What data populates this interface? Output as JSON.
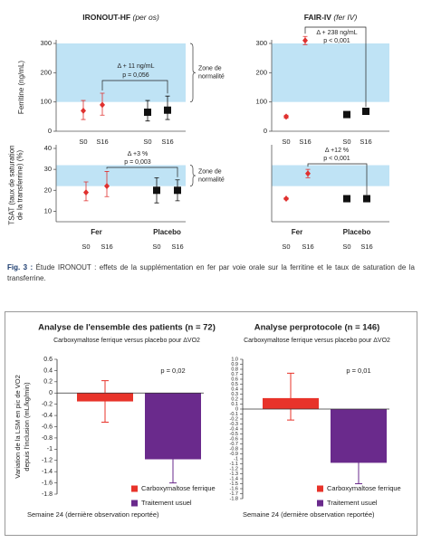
{
  "caption": {
    "label": "Fig. 3 :",
    "text": "Étude IRONOUT : effets de la supplémentation en fer par voie orale sur la ferritine et le taux de saturation de la transferrine."
  },
  "chart_data": [
    {
      "type": "dot",
      "title": "IRONOUT-HF",
      "title_note": "(per os)",
      "ylabel": [
        "Ferritine (ng/mL)"
      ],
      "categories": [
        "S0",
        "S16",
        "S0",
        "S16"
      ],
      "values": [
        70,
        90,
        65,
        72
      ],
      "low": [
        40,
        55,
        35,
        40
      ],
      "high": [
        105,
        130,
        105,
        120
      ],
      "colors": [
        "#e0312f",
        "#e0312f",
        "#111111",
        "#111111"
      ],
      "markers": [
        "diamond",
        "diamond",
        "square",
        "square"
      ],
      "ylim": [
        0,
        300
      ],
      "yticks": [
        0,
        100,
        200,
        300
      ],
      "normal_zone": [
        100,
        300
      ],
      "zone_label": [
        "Zone de",
        "normalité"
      ],
      "delta": "Δ + 11 ng/mL",
      "p": "p = 0,056"
    },
    {
      "type": "dot",
      "title": "FAIR-IV",
      "title_note": "(fer IV)",
      "categories": [
        "S0",
        "S16",
        "S0",
        "S16"
      ],
      "values": [
        50,
        310,
        57,
        68
      ],
      "low": [
        45,
        296,
        52,
        62
      ],
      "high": [
        55,
        324,
        62,
        74
      ],
      "colors": [
        "#e0312f",
        "#e0312f",
        "#111111",
        "#111111"
      ],
      "markers": [
        "diamond",
        "diamond",
        "square",
        "square"
      ],
      "ylim": [
        0,
        300
      ],
      "yticks": [
        0,
        100,
        200,
        300
      ],
      "normal_zone": [
        100,
        300
      ],
      "delta": "Δ + 238 ng/mL",
      "p": "p < 0,001"
    },
    {
      "type": "dot",
      "ylabel": [
        "TSAT (taux de saturation",
        "de la transferrine) (%)"
      ],
      "categories": [
        "S0",
        "S16",
        "S0",
        "S16"
      ],
      "group_labels": [
        "Fer",
        "Placebo"
      ],
      "group_colors": [
        "#e0312f",
        "#111111"
      ],
      "values": [
        19,
        22,
        20,
        20
      ],
      "low": [
        15,
        17,
        14,
        15
      ],
      "high": [
        24,
        29,
        26,
        25
      ],
      "colors": [
        "#e0312f",
        "#e0312f",
        "#111111",
        "#111111"
      ],
      "markers": [
        "diamond",
        "diamond",
        "square",
        "square"
      ],
      "ylim": [
        5,
        40
      ],
      "yticks": [
        10,
        20,
        30,
        40
      ],
      "normal_zone": [
        22,
        32
      ],
      "zone_label": [
        "Zone de",
        "normalité"
      ],
      "delta": "Δ +3 %",
      "p": "p = 0,003"
    },
    {
      "type": "dot",
      "categories": [
        "S0",
        "S16",
        "S0",
        "S16"
      ],
      "group_labels": [
        "Fer",
        "Placebo"
      ],
      "group_colors": [
        "#e0312f",
        "#111111"
      ],
      "values": [
        16,
        28,
        16,
        16
      ],
      "low": [
        15.5,
        26,
        15.5,
        15.5
      ],
      "high": [
        16.5,
        30,
        16.5,
        16.5
      ],
      "colors": [
        "#e0312f",
        "#e0312f",
        "#111111",
        "#111111"
      ],
      "markers": [
        "diamond",
        "diamond",
        "square",
        "square"
      ],
      "ylim": [
        5,
        40
      ],
      "normal_zone": [
        22,
        32
      ],
      "delta": "Δ +12 %",
      "p": "p < 0,001"
    },
    {
      "type": "bar",
      "title": "Analyse de l'ensemble des patients (n = 72)",
      "subtitle": "Carboxymaltose ferrique versus placebo pour ΔVO2",
      "ylabel": [
        "Variation de la LSM en pic de VO2",
        "depuis l'inclusion (mL/kg/min)"
      ],
      "categories": [
        "Carboxymaltose ferrique",
        "Traitement usuel"
      ],
      "values": [
        -0.15,
        -1.18
      ],
      "low": [
        -0.52,
        -1.6
      ],
      "high": [
        0.22,
        -0.76
      ],
      "colors": [
        "#e8332a",
        "#6a2a8c"
      ],
      "p": "p = 0,02",
      "xlabel": "Semaine 24 (dernière observation reportée)",
      "ylim": [
        -1.8,
        0.6
      ],
      "yticks": [
        0.6,
        0.4,
        0.2,
        0,
        -0.2,
        -0.4,
        -0.6,
        -0.8,
        -1,
        -1.2,
        -1.4,
        -1.6,
        -1.8
      ]
    },
    {
      "type": "bar",
      "title": "Analyse perprotocole (n = 146)",
      "subtitle": "Carboxymaltose ferrique versus placebo pour ΔVO2",
      "categories": [
        "Carboxymaltose ferrique",
        "Traitement usuel"
      ],
      "values": [
        0.22,
        -1.08
      ],
      "low": [
        -0.22,
        -1.5
      ],
      "high": [
        0.72,
        -0.66
      ],
      "colors": [
        "#e8332a",
        "#6a2a8c"
      ],
      "p": "p = 0,01",
      "xlabel": "Semaine 24 (dernière observation reportée)",
      "ylim": [
        -1.8,
        1
      ],
      "yticks": [
        {
          "value": 1,
          "label": "1.0"
        },
        0.9,
        0.8,
        0.7,
        0.6,
        0.5,
        0.4,
        0.3,
        0.2,
        0.1,
        0,
        -0.1,
        -0.2,
        -0.3,
        -0.4,
        -0.5,
        -0.6,
        -0.7,
        -0.8,
        -0.9,
        -1,
        -1.1,
        -1.2,
        -1.3,
        -1.4,
        -1.5,
        -1.6,
        -1.7,
        -1.8
      ]
    }
  ]
}
